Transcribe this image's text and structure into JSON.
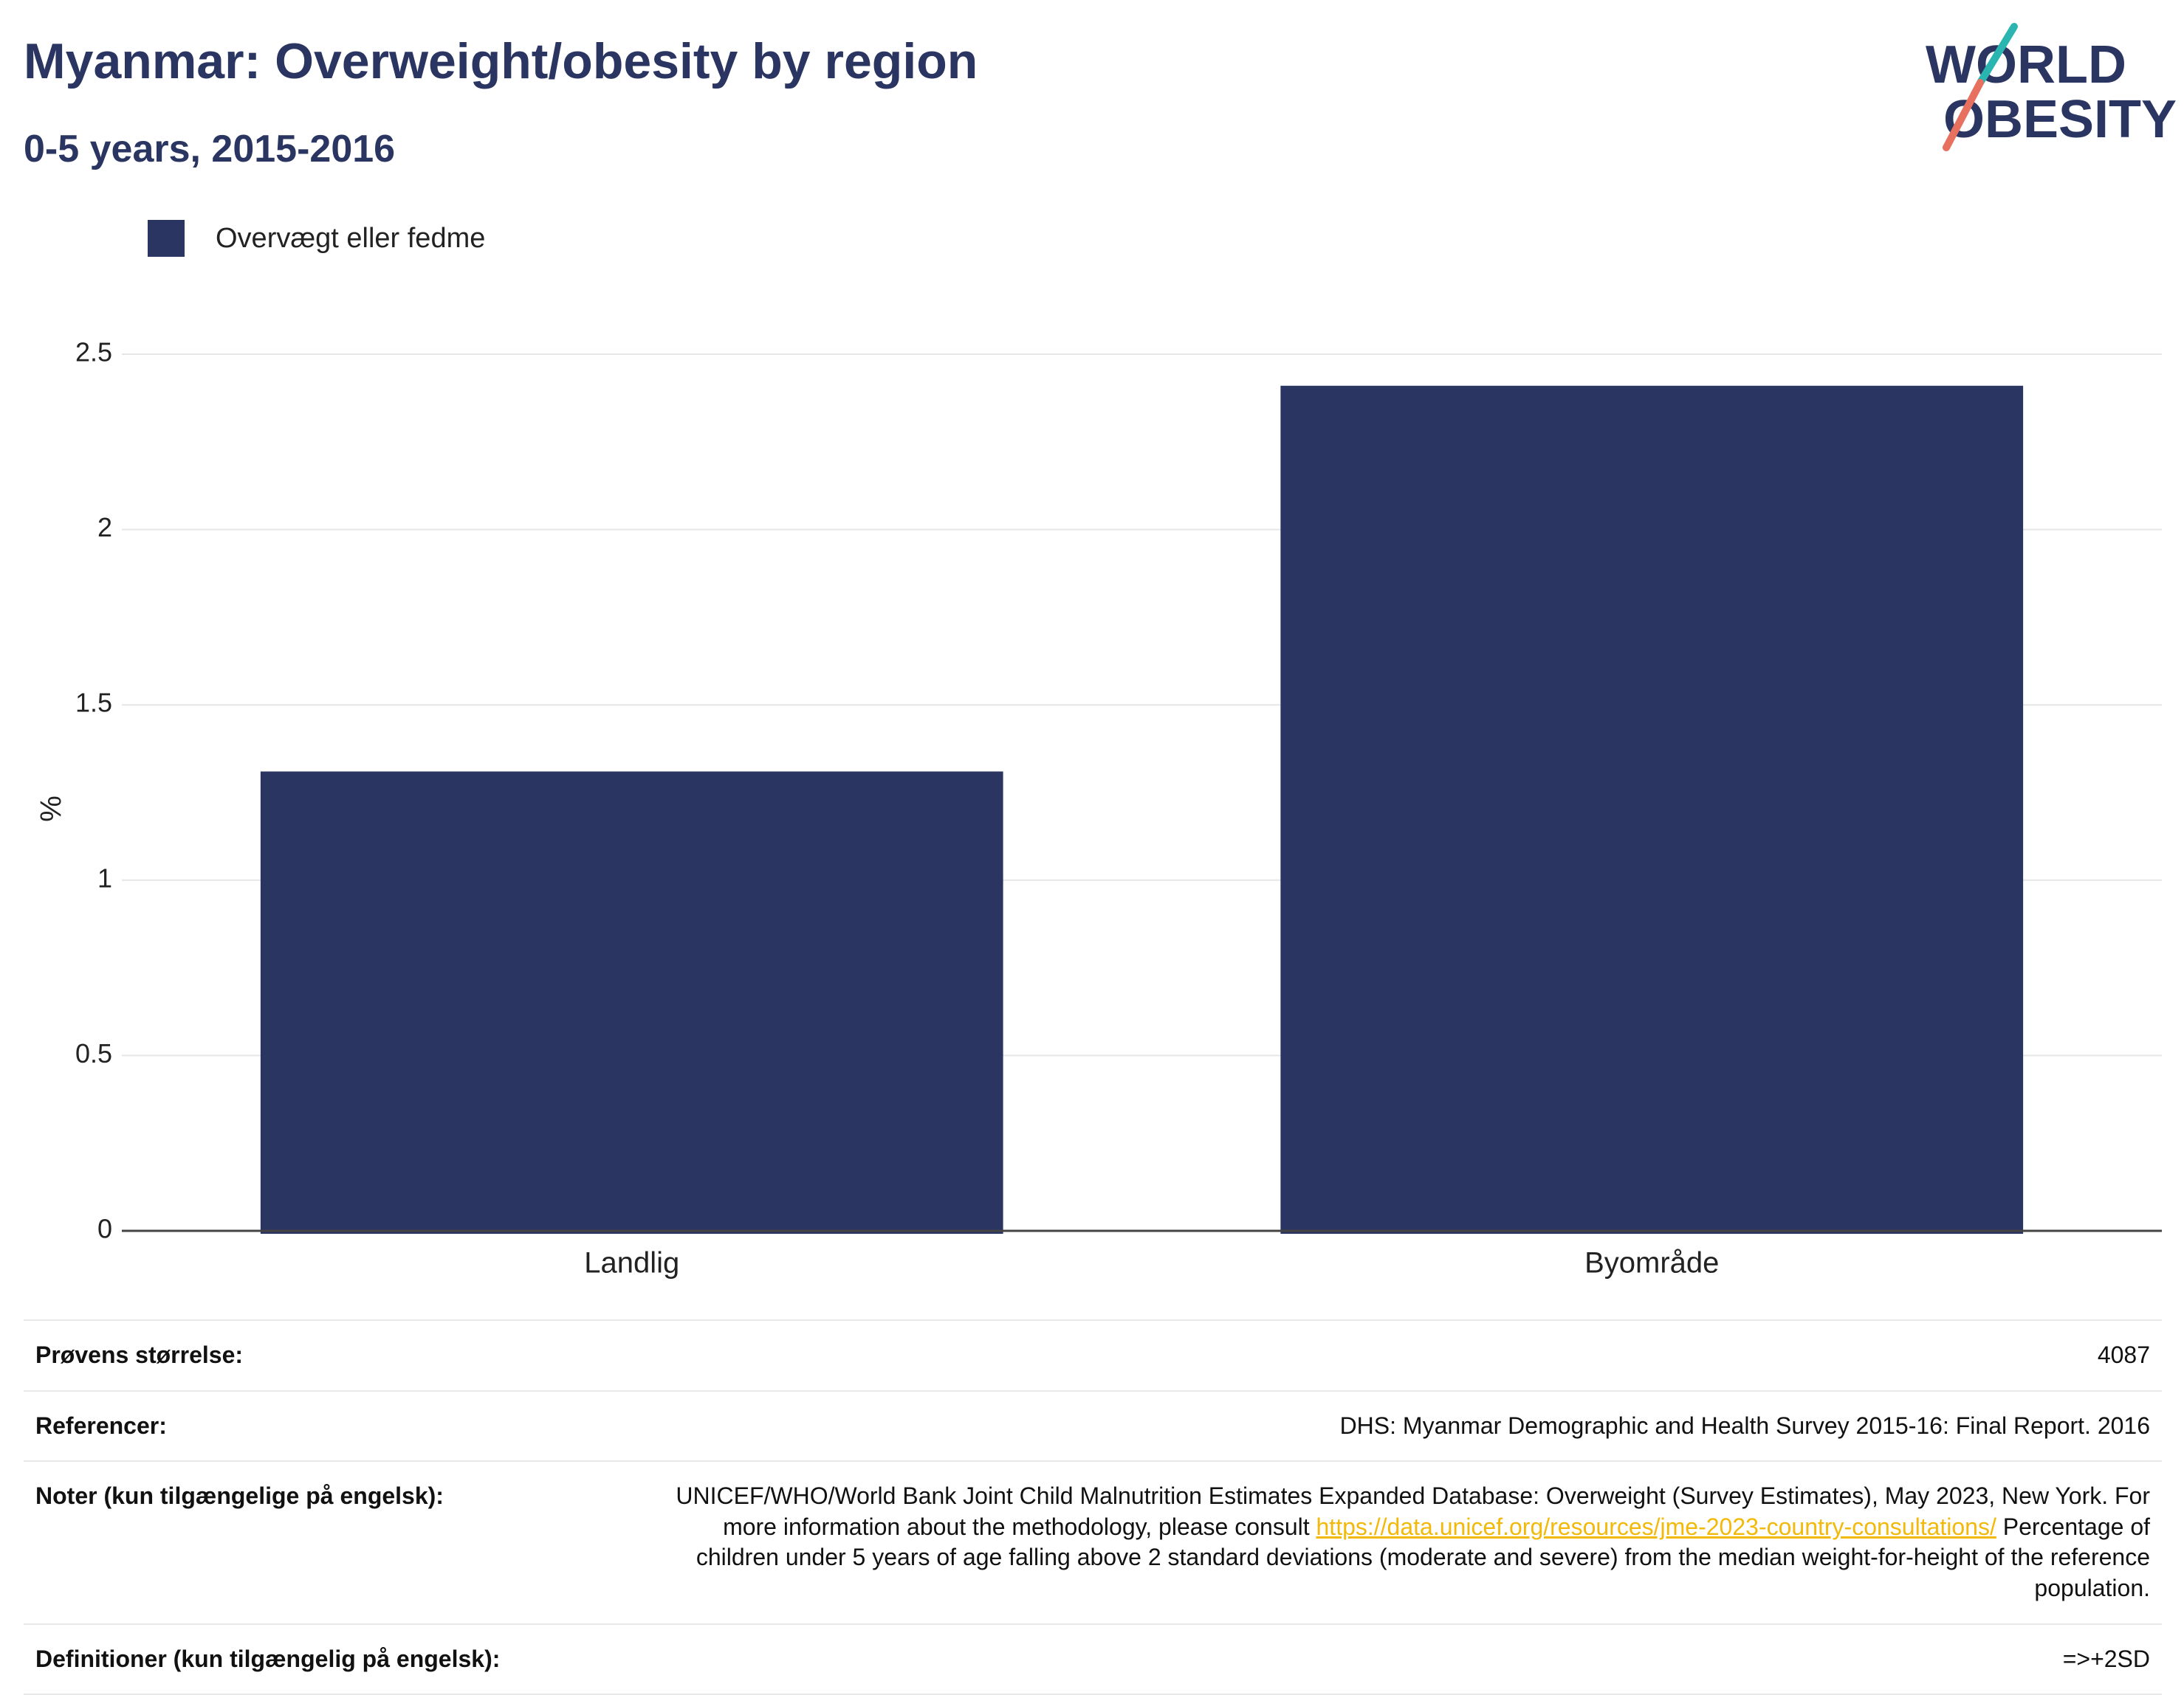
{
  "header": {
    "title": "Myanmar: Overweight/obesity by region",
    "subtitle": "0-5 years, 2015-2016"
  },
  "logo": {
    "line1": "WORLD",
    "line2": "OBESITY",
    "colors": {
      "text": "#2a3562",
      "slash_top": "#2bb5b0",
      "slash_bottom": "#e8705f"
    }
  },
  "legend": {
    "items": [
      {
        "label": "Overvægt eller fedme",
        "color": "#2a3562"
      }
    ]
  },
  "chart_data": {
    "type": "bar",
    "categories": [
      "Landlig",
      "Byområde"
    ],
    "series": [
      {
        "name": "Overvægt eller fedme",
        "values": [
          1.31,
          2.41
        ],
        "color": "#2a3562"
      }
    ],
    "xlabel": "",
    "ylabel": "%",
    "ylim": [
      0,
      2.5
    ],
    "yticks": [
      0,
      0.5,
      1,
      1.5,
      2,
      2.5
    ],
    "ytick_labels": [
      "0",
      "0.5",
      "1",
      "1.5",
      "2",
      "2.5"
    ],
    "grid": true,
    "legend_position": "top-left"
  },
  "details": {
    "sample_size": {
      "label": "Prøvens størrelse:",
      "value": "4087"
    },
    "references": {
      "label": "Referencer:",
      "value": "DHS: Myanmar Demographic and Health Survey 2015-16: Final Report. 2016"
    },
    "notes": {
      "label": "Noter (kun tilgængelige på engelsk):",
      "text_before_link": "UNICEF/WHO/World Bank Joint Child Malnutrition Estimates Expanded Database: Overweight (Survey Estimates), May 2023, New York. For more information about the methodology, please consult ",
      "link": "https://data.unicef.org/resources/jme-2023-country-consultations/",
      "text_after_link": " Percentage of children under 5 years of age falling above 2 standard deviations (moderate and severe) from the median weight-for-height of the reference population."
    },
    "definitions": {
      "label": "Definitioner (kun tilgængelig på engelsk):",
      "value": "=>+2SD"
    }
  }
}
